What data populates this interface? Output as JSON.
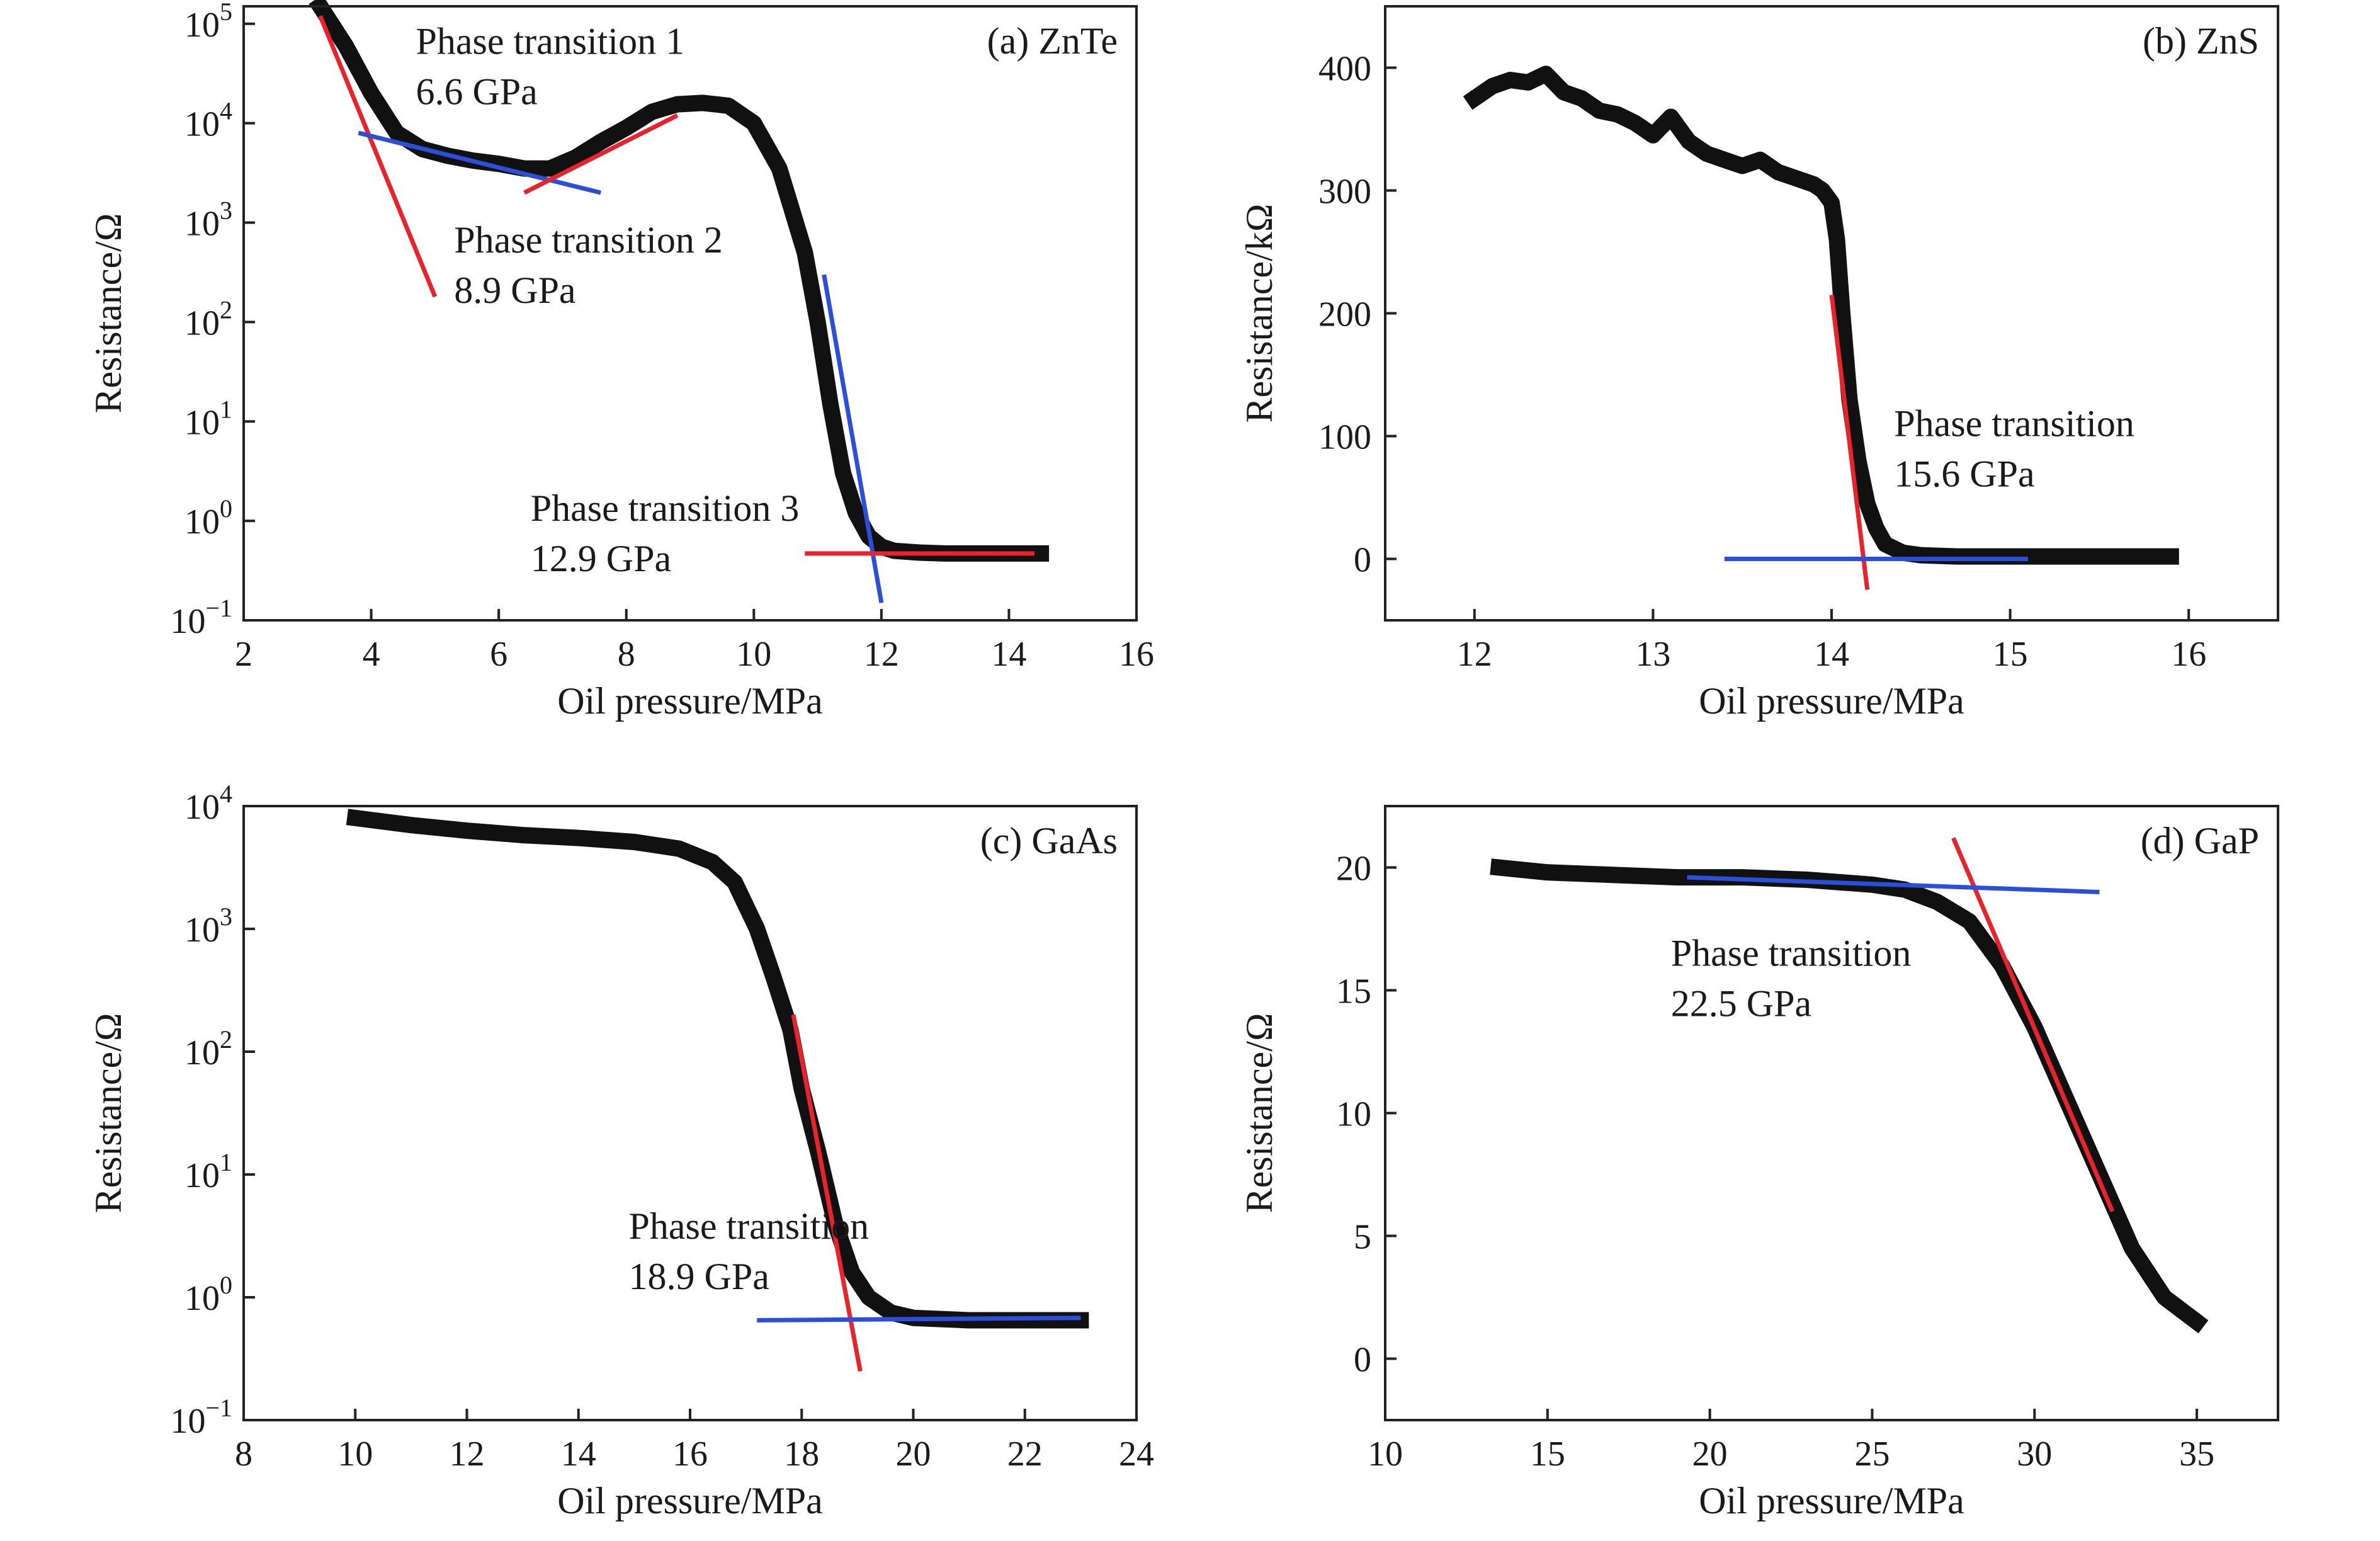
{
  "colors": {
    "data": "#111111",
    "fit_red": "#e8232b",
    "fit_blue": "#2b4fd8",
    "axis": "#222222"
  },
  "chart_data": [
    {
      "type": "scatter",
      "panel_label": "(a) ZnTe",
      "xlabel": "Oil pressure/MPa",
      "ylabel": "Resistance/Ω",
      "yscale": "log",
      "xlim": [
        2,
        16
      ],
      "ylim": [
        0.1,
        150000
      ],
      "xticks": [
        "2",
        "4",
        "6",
        "8",
        "10",
        "12",
        "14",
        "16"
      ],
      "yticks": [
        {
          "value": 0.1,
          "base": "10",
          "exp": "−1"
        },
        {
          "value": 1,
          "base": "10",
          "exp": "0"
        },
        {
          "value": 10,
          "base": "10",
          "exp": "1"
        },
        {
          "value": 100,
          "base": "10",
          "exp": "2"
        },
        {
          "value": 1000,
          "base": "10",
          "exp": "3"
        },
        {
          "value": 10000,
          "base": "10",
          "exp": "4"
        },
        {
          "value": 100000,
          "base": "10",
          "exp": "5"
        }
      ],
      "series": [
        {
          "x": [
            3.2,
            3.6,
            4.0,
            4.4,
            4.8,
            5.2,
            5.6,
            6.0,
            6.4,
            6.8,
            7.2,
            7.6,
            8.0,
            8.4,
            8.8,
            9.2,
            9.6,
            10.0,
            10.4,
            10.8,
            11.0,
            11.2,
            11.4,
            11.6,
            11.8,
            12.0,
            12.2,
            12.6,
            13.0,
            13.6,
            14.0,
            14.5
          ],
          "y": [
            150000,
            60000,
            20000,
            8000,
            5500,
            4700,
            4200,
            3900,
            3500,
            3500,
            4500,
            6500,
            9000,
            13000,
            15500,
            16000,
            15000,
            10000,
            3500,
            500,
            100,
            15,
            3,
            1.2,
            0.7,
            0.55,
            0.5,
            0.48,
            0.47,
            0.47,
            0.47,
            0.47
          ]
        }
      ],
      "fits": [
        {
          "color": "red",
          "x": [
            3.2,
            5.0
          ],
          "y": [
            120000,
            180
          ]
        },
        {
          "color": "blue",
          "x": [
            3.8,
            7.6
          ],
          "y": [
            8000,
            2000
          ]
        },
        {
          "color": "red",
          "x": [
            6.4,
            8.8
          ],
          "y": [
            2000,
            12000
          ]
        },
        {
          "color": "blue",
          "x": [
            11.1,
            12.0
          ],
          "y": [
            300,
            0.15
          ]
        },
        {
          "color": "red",
          "x": [
            10.8,
            14.4
          ],
          "y": [
            0.47,
            0.47
          ]
        }
      ],
      "annotations": [
        {
          "lines": [
            "Phase transition 1",
            "6.6 GPa"
          ],
          "x": 4.7,
          "y": 50000
        },
        {
          "lines": [
            "Phase transition 2",
            "8.9 GPa"
          ],
          "x": 5.3,
          "y": 500
        },
        {
          "lines": [
            "Phase transition 3",
            "12.9 GPa"
          ],
          "x": 6.5,
          "y": 1.0
        }
      ]
    },
    {
      "type": "scatter",
      "panel_label": "(b) ZnS",
      "xlabel": "Oil pressure/MPa",
      "ylabel": "Resistance/kΩ",
      "yscale": "linear",
      "xlim": [
        11.5,
        16.5
      ],
      "ylim": [
        -50,
        450
      ],
      "xticks": [
        "12",
        "13",
        "14",
        "15",
        "16"
      ],
      "yticks": [
        {
          "value": 0,
          "label": "0"
        },
        {
          "value": 100,
          "label": "100"
        },
        {
          "value": 200,
          "label": "200"
        },
        {
          "value": 300,
          "label": "300"
        },
        {
          "value": 400,
          "label": "400"
        }
      ],
      "series": [
        {
          "x": [
            12.0,
            12.1,
            12.2,
            12.3,
            12.4,
            12.5,
            12.6,
            12.7,
            12.8,
            12.9,
            13.0,
            13.1,
            13.2,
            13.3,
            13.4,
            13.5,
            13.6,
            13.7,
            13.8,
            13.9,
            13.95,
            14.0,
            14.03,
            14.06,
            14.1,
            14.15,
            14.2,
            14.25,
            14.3,
            14.4,
            14.5,
            14.7,
            15.0,
            15.5,
            15.9
          ],
          "y": [
            375,
            385,
            390,
            388,
            395,
            380,
            375,
            365,
            362,
            355,
            345,
            360,
            340,
            330,
            325,
            320,
            325,
            315,
            310,
            305,
            300,
            290,
            260,
            200,
            130,
            80,
            45,
            25,
            12,
            5,
            3,
            2,
            2,
            2,
            2
          ]
        }
      ],
      "fits": [
        {
          "color": "red",
          "x": [
            14.0,
            14.2
          ],
          "y": [
            215,
            -25
          ]
        },
        {
          "color": "blue",
          "x": [
            13.4,
            15.1
          ],
          "y": [
            0,
            0
          ]
        }
      ],
      "annotations": [
        {
          "lines": [
            "Phase transition",
            "15.6 GPa"
          ],
          "x": 14.35,
          "y": 100
        }
      ]
    },
    {
      "type": "scatter",
      "panel_label": "(c) GaAs",
      "xlabel": "Oil pressure/MPa",
      "ylabel": "Resistance/Ω",
      "yscale": "log",
      "xlim": [
        8,
        24
      ],
      "ylim": [
        0.1,
        10000
      ],
      "xticks": [
        "8",
        "10",
        "12",
        "14",
        "16",
        "18",
        "20",
        "22",
        "24"
      ],
      "yticks": [
        {
          "value": 0.1,
          "base": "10",
          "exp": "−1"
        },
        {
          "value": 1,
          "base": "10",
          "exp": "0"
        },
        {
          "value": 10,
          "base": "10",
          "exp": "1"
        },
        {
          "value": 100,
          "base": "10",
          "exp": "2"
        },
        {
          "value": 1000,
          "base": "10",
          "exp": "3"
        },
        {
          "value": 10000,
          "base": "10",
          "exp": "4"
        }
      ],
      "series": [
        {
          "x": [
            10.0,
            11.0,
            12.0,
            13.0,
            14.0,
            15.0,
            15.8,
            16.4,
            16.8,
            17.2,
            17.5,
            17.8,
            18.0,
            18.3,
            18.6,
            18.9,
            19.2,
            19.6,
            20.0,
            21.0,
            22.0,
            23.0
          ],
          "y": [
            8000,
            7000,
            6300,
            5800,
            5500,
            5100,
            4500,
            3500,
            2400,
            1000,
            400,
            150,
            50,
            15,
            4,
            1.6,
            1.0,
            0.75,
            0.68,
            0.65,
            0.65,
            0.65
          ]
        }
      ],
      "fits": [
        {
          "color": "red",
          "x": [
            17.85,
            19.05
          ],
          "y": [
            200,
            0.25
          ]
        },
        {
          "color": "blue",
          "x": [
            17.2,
            23.0
          ],
          "y": [
            0.65,
            0.68
          ]
        }
      ],
      "annotations": [
        {
          "lines": [
            "Phase transition",
            "18.9 GPa"
          ],
          "x": 14.9,
          "y": 3
        }
      ]
    },
    {
      "type": "scatter",
      "panel_label": "(d) GaP",
      "xlabel": "Oil pressure/MPa",
      "ylabel": "Resistance/Ω",
      "yscale": "linear",
      "xlim": [
        10,
        37.5
      ],
      "ylim": [
        -2.5,
        22.5
      ],
      "xticks": [
        "10",
        "15",
        "20",
        "25",
        "30",
        "35"
      ],
      "yticks": [
        {
          "value": 0,
          "label": "0"
        },
        {
          "value": 5,
          "label": "5"
        },
        {
          "value": 10,
          "label": "10"
        },
        {
          "value": 15,
          "label": "15"
        },
        {
          "value": 20,
          "label": "20"
        }
      ],
      "series": [
        {
          "x": [
            13.5,
            15,
            17,
            19,
            21,
            23,
            25,
            26,
            27,
            28,
            29,
            30,
            31,
            32,
            33,
            34,
            35
          ],
          "y": [
            20.0,
            19.8,
            19.7,
            19.6,
            19.6,
            19.5,
            19.3,
            19.1,
            18.6,
            17.8,
            16.0,
            13.5,
            10.5,
            7.5,
            4.5,
            2.5,
            1.5
          ]
        }
      ],
      "fits": [
        {
          "color": "red",
          "x": [
            27.5,
            32.4
          ],
          "y": [
            21.2,
            6.0
          ]
        },
        {
          "color": "blue",
          "x": [
            19.3,
            32.0
          ],
          "y": [
            19.6,
            19.0
          ]
        }
      ],
      "annotations": [
        {
          "lines": [
            "Phase transition",
            "22.5 GPa"
          ],
          "x": 18.8,
          "y": 16
        }
      ]
    }
  ]
}
